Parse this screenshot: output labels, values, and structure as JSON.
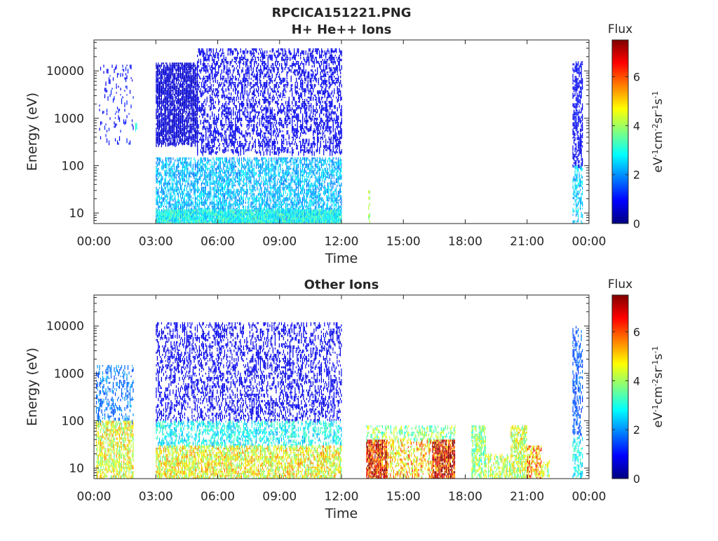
{
  "figure_title": "RPCICA151221.PNG",
  "colormap": [
    "#00007f",
    "#0000ff",
    "#0080ff",
    "#00ffff",
    "#80ff80",
    "#ffff00",
    "#ff8000",
    "#ff0000",
    "#7f0000"
  ],
  "chart_data": [
    {
      "type": "heatmap",
      "title": "H+ He++ Ions",
      "xlabel": "Time",
      "ylabel": "Energy (eV)",
      "x_ticks": [
        "00:00",
        "03:00",
        "06:00",
        "09:00",
        "12:00",
        "15:00",
        "18:00",
        "21:00",
        "00:00"
      ],
      "y_ticks": [
        "10",
        "100",
        "1000",
        "10000"
      ],
      "y_scale": "log",
      "xlim_hours": [
        0,
        24
      ],
      "ylim": [
        6,
        45000
      ],
      "colorbar": {
        "label": "Flux",
        "units": "eV-1cm-2sr-1s-1",
        "ticks": [
          "0",
          "2",
          "4",
          "6"
        ],
        "range": [
          0,
          7.5
        ]
      },
      "regions": [
        {
          "t": [
            0.2,
            1.9
          ],
          "e": [
            300,
            15000
          ],
          "flux": 1.0,
          "density": 0.08
        },
        {
          "t": [
            2.0,
            2.1
          ],
          "e": [
            650,
            800
          ],
          "flux": 2.8,
          "density": 1.0
        },
        {
          "t": [
            3.0,
            5.0
          ],
          "e": [
            300,
            15000
          ],
          "flux": 0.6,
          "density": 0.75
        },
        {
          "t": [
            5.0,
            12.0
          ],
          "e": [
            200,
            30000
          ],
          "flux": 0.8,
          "density": 0.35
        },
        {
          "t": [
            3.0,
            12.0
          ],
          "e": [
            6,
            150
          ],
          "flux": 2.3,
          "density": 0.55
        },
        {
          "t": [
            3.0,
            12.0
          ],
          "e": [
            6,
            12
          ],
          "flux": 2.9,
          "density": 0.9
        },
        {
          "t": [
            13.3,
            13.4
          ],
          "e": [
            6,
            30
          ],
          "flux": 4.0,
          "density": 0.4
        },
        {
          "t": [
            23.2,
            23.7
          ],
          "e": [
            100,
            16000
          ],
          "flux": 0.9,
          "density": 0.55
        },
        {
          "t": [
            23.2,
            23.7
          ],
          "e": [
            6,
            100
          ],
          "flux": 2.4,
          "density": 0.45
        }
      ]
    },
    {
      "type": "heatmap",
      "title": "Other Ions",
      "xlabel": "Time",
      "ylabel": "Energy (eV)",
      "x_ticks": [
        "00:00",
        "03:00",
        "06:00",
        "09:00",
        "12:00",
        "15:00",
        "18:00",
        "21:00",
        "00:00"
      ],
      "y_ticks": [
        "10",
        "100",
        "1000",
        "10000"
      ],
      "y_scale": "log",
      "xlim_hours": [
        0,
        24
      ],
      "ylim": [
        6,
        45000
      ],
      "colorbar": {
        "label": "Flux",
        "units": "eV-1cm-2sr-1s-1",
        "ticks": [
          "0",
          "2",
          "4",
          "6"
        ],
        "range": [
          0,
          7.5
        ]
      },
      "regions": [
        {
          "t": [
            0.1,
            1.9
          ],
          "e": [
            100,
            1500
          ],
          "flux": 1.8,
          "density": 0.25
        },
        {
          "t": [
            0.1,
            1.9
          ],
          "e": [
            6,
            100
          ],
          "flux": 4.5,
          "density": 0.55
        },
        {
          "t": [
            3.0,
            12.0
          ],
          "e": [
            100,
            12000
          ],
          "flux": 0.8,
          "density": 0.3
        },
        {
          "t": [
            3.0,
            12.0
          ],
          "e": [
            30,
            100
          ],
          "flux": 2.8,
          "density": 0.4
        },
        {
          "t": [
            3.0,
            12.0
          ],
          "e": [
            6,
            30
          ],
          "flux": 4.6,
          "density": 0.6
        },
        {
          "t": [
            13.2,
            17.5
          ],
          "e": [
            40,
            80
          ],
          "flux": 3.8,
          "density": 0.35
        },
        {
          "t": [
            13.2,
            14.2
          ],
          "e": [
            6,
            40
          ],
          "flux": 6.5,
          "density": 0.85
        },
        {
          "t": [
            14.2,
            16.4
          ],
          "e": [
            6,
            40
          ],
          "flux": 5.0,
          "density": 0.4
        },
        {
          "t": [
            16.4,
            17.5
          ],
          "e": [
            6,
            40
          ],
          "flux": 6.6,
          "density": 0.85
        },
        {
          "t": [
            18.3,
            19.0
          ],
          "e": [
            6,
            80
          ],
          "flux": 3.9,
          "density": 0.55
        },
        {
          "t": [
            19.0,
            20.2
          ],
          "e": [
            6,
            20
          ],
          "flux": 4.2,
          "density": 0.45
        },
        {
          "t": [
            20.2,
            21.0
          ],
          "e": [
            6,
            80
          ],
          "flux": 4.3,
          "density": 0.6
        },
        {
          "t": [
            21.0,
            21.7
          ],
          "e": [
            6,
            30
          ],
          "flux": 5.4,
          "density": 0.55
        },
        {
          "t": [
            21.7,
            22.1
          ],
          "e": [
            6,
            15
          ],
          "flux": 4.0,
          "density": 0.35
        },
        {
          "t": [
            23.2,
            23.7
          ],
          "e": [
            50,
            10000
          ],
          "flux": 1.6,
          "density": 0.35
        },
        {
          "t": [
            23.2,
            23.7
          ],
          "e": [
            6,
            50
          ],
          "flux": 2.8,
          "density": 0.4
        }
      ]
    }
  ]
}
